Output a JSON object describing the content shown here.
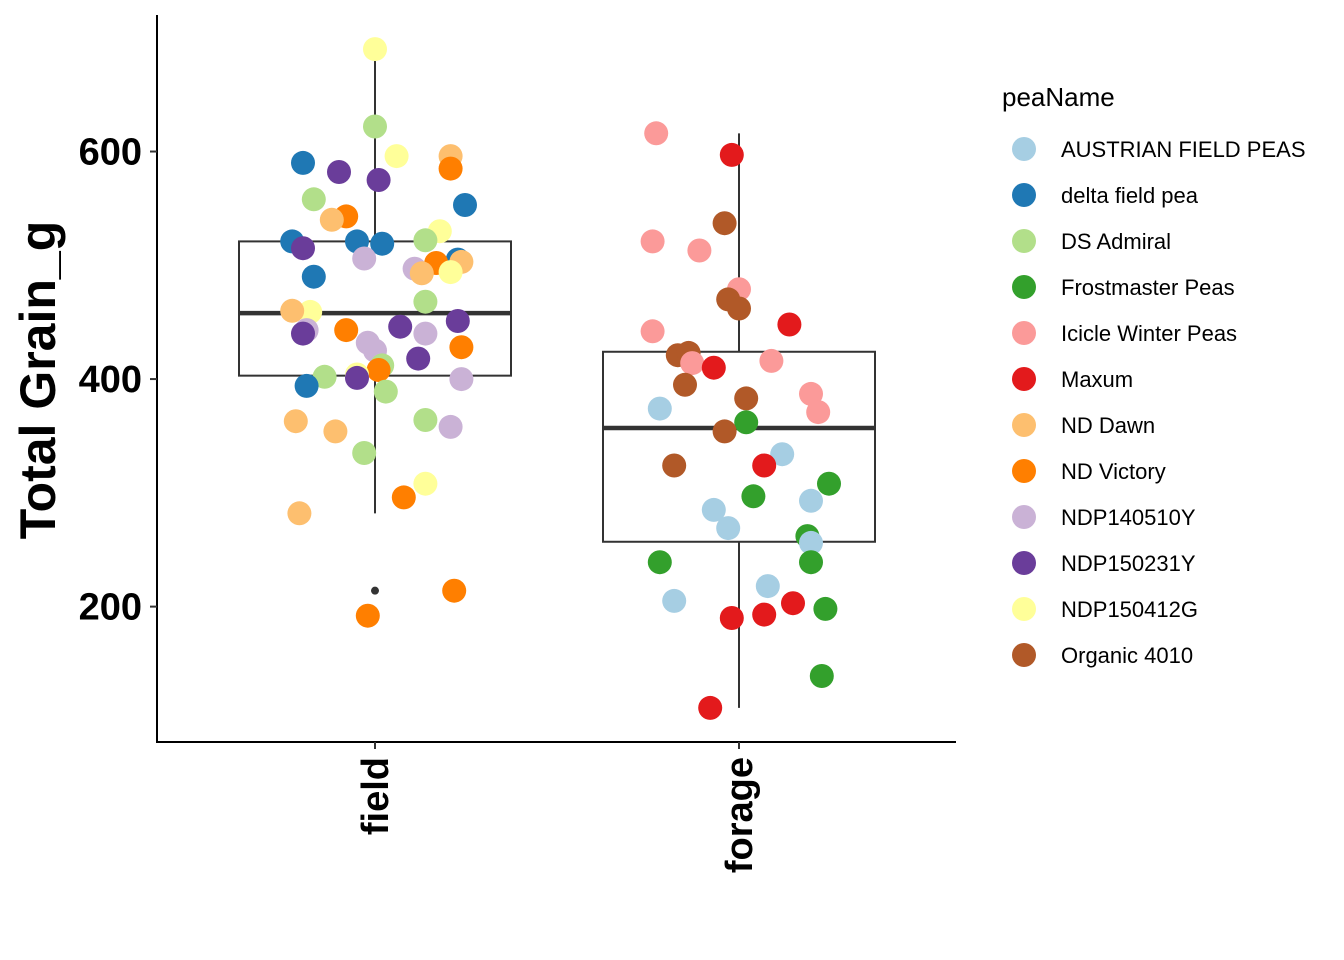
{
  "chart_data": {
    "type": "boxplot_with_jitter",
    "ylabel": "Total Grain_g",
    "xlabel": "",
    "categories": [
      "field",
      "forage"
    ],
    "ylim": [
      81,
      720
    ],
    "yticks": [
      200,
      400,
      600
    ],
    "legend": {
      "title": "peaName",
      "placement": "right",
      "entries": [
        {
          "name": "AUSTRIAN FIELD PEAS",
          "color": "#A6CEE3"
        },
        {
          "name": "delta field pea",
          "color": "#1F78B4"
        },
        {
          "name": "DS Admiral",
          "color": "#B2DF8A"
        },
        {
          "name": "Frostmaster Peas",
          "color": "#33A02C"
        },
        {
          "name": "Icicle Winter Peas",
          "color": "#FB9A99"
        },
        {
          "name": "Maxum",
          "color": "#E31A1C"
        },
        {
          "name": "ND Dawn",
          "color": "#FDBF6F"
        },
        {
          "name": "ND Victory",
          "color": "#FF7F00"
        },
        {
          "name": "NDP140510Y",
          "color": "#CAB2D6"
        },
        {
          "name": "NDP150231Y",
          "color": "#6A3D9A"
        },
        {
          "name": "NDP150412G",
          "color": "#FFFF99"
        },
        {
          "name": "Organic 4010",
          "color": "#B15928"
        }
      ]
    },
    "boxes": [
      {
        "category": "field",
        "lower_whisker": 282,
        "q1": 403,
        "median": 458,
        "q3": 521,
        "upper_whisker": 690,
        "outliers": [
          214,
          192
        ]
      },
      {
        "category": "forage",
        "lower_whisker": 111,
        "q1": 257,
        "median": 357,
        "q3": 424,
        "upper_whisker": 616,
        "outliers": []
      }
    ],
    "points": [
      {
        "category": "field",
        "jitter": -0.2,
        "y": 590,
        "group": "delta field pea"
      },
      {
        "category": "field",
        "jitter": -0.1,
        "y": 582,
        "group": "NDP150231Y"
      },
      {
        "category": "field",
        "jitter": 0.0,
        "y": 690,
        "group": "NDP150412G"
      },
      {
        "category": "field",
        "jitter": 0.0,
        "y": 622,
        "group": "DS Admiral"
      },
      {
        "category": "field",
        "jitter": 0.06,
        "y": 596,
        "group": "NDP150412G"
      },
      {
        "category": "field",
        "jitter": 0.21,
        "y": 596,
        "group": "ND Dawn"
      },
      {
        "category": "field",
        "jitter": 0.21,
        "y": 585,
        "group": "ND Victory"
      },
      {
        "category": "field",
        "jitter": 0.01,
        "y": 575,
        "group": "NDP150231Y"
      },
      {
        "category": "field",
        "jitter": -0.17,
        "y": 558,
        "group": "DS Admiral"
      },
      {
        "category": "field",
        "jitter": 0.25,
        "y": 553,
        "group": "delta field pea"
      },
      {
        "category": "field",
        "jitter": -0.08,
        "y": 543,
        "group": "ND Victory"
      },
      {
        "category": "field",
        "jitter": -0.12,
        "y": 540,
        "group": "ND Dawn"
      },
      {
        "category": "field",
        "jitter": 0.18,
        "y": 530,
        "group": "NDP150412G"
      },
      {
        "category": "field",
        "jitter": 0.14,
        "y": 522,
        "group": "DS Admiral"
      },
      {
        "category": "field",
        "jitter": -0.23,
        "y": 521,
        "group": "delta field pea"
      },
      {
        "category": "field",
        "jitter": -0.05,
        "y": 521,
        "group": "delta field pea"
      },
      {
        "category": "field",
        "jitter": 0.02,
        "y": 519,
        "group": "delta field pea"
      },
      {
        "category": "field",
        "jitter": -0.2,
        "y": 515,
        "group": "NDP150231Y"
      },
      {
        "category": "field",
        "jitter": -0.03,
        "y": 506,
        "group": "NDP140510Y"
      },
      {
        "category": "field",
        "jitter": 0.23,
        "y": 505,
        "group": "delta field pea"
      },
      {
        "category": "field",
        "jitter": 0.24,
        "y": 503,
        "group": "ND Dawn"
      },
      {
        "category": "field",
        "jitter": 0.17,
        "y": 502,
        "group": "ND Victory"
      },
      {
        "category": "field",
        "jitter": 0.11,
        "y": 497,
        "group": "NDP140510Y"
      },
      {
        "category": "field",
        "jitter": 0.21,
        "y": 494,
        "group": "NDP150412G"
      },
      {
        "category": "field",
        "jitter": 0.13,
        "y": 493,
        "group": "ND Dawn"
      },
      {
        "category": "field",
        "jitter": -0.17,
        "y": 490,
        "group": "delta field pea"
      },
      {
        "category": "field",
        "jitter": 0.14,
        "y": 468,
        "group": "DS Admiral"
      },
      {
        "category": "field",
        "jitter": -0.18,
        "y": 459,
        "group": "NDP150412G"
      },
      {
        "category": "field",
        "jitter": -0.23,
        "y": 460,
        "group": "ND Dawn"
      },
      {
        "category": "field",
        "jitter": 0.23,
        "y": 451,
        "group": "NDP150231Y"
      },
      {
        "category": "field",
        "jitter": -0.08,
        "y": 443,
        "group": "ND Victory"
      },
      {
        "category": "field",
        "jitter": -0.19,
        "y": 443,
        "group": "NDP140510Y"
      },
      {
        "category": "field",
        "jitter": 0.07,
        "y": 446,
        "group": "NDP150231Y"
      },
      {
        "category": "field",
        "jitter": 0.14,
        "y": 440,
        "group": "NDP140510Y"
      },
      {
        "category": "field",
        "jitter": -0.2,
        "y": 440,
        "group": "NDP150231Y"
      },
      {
        "category": "field",
        "jitter": -0.02,
        "y": 432,
        "group": "NDP140510Y"
      },
      {
        "category": "field",
        "jitter": 0.24,
        "y": 428,
        "group": "ND Victory"
      },
      {
        "category": "field",
        "jitter": 0.0,
        "y": 425,
        "group": "NDP140510Y"
      },
      {
        "category": "field",
        "jitter": 0.12,
        "y": 418,
        "group": "NDP150231Y"
      },
      {
        "category": "field",
        "jitter": 0.02,
        "y": 412,
        "group": "DS Admiral"
      },
      {
        "category": "field",
        "jitter": 0.01,
        "y": 408,
        "group": "ND Victory"
      },
      {
        "category": "field",
        "jitter": -0.14,
        "y": 402,
        "group": "DS Admiral"
      },
      {
        "category": "field",
        "jitter": -0.05,
        "y": 404,
        "group": "NDP150412G"
      },
      {
        "category": "field",
        "jitter": -0.05,
        "y": 401,
        "group": "NDP150231Y"
      },
      {
        "category": "field",
        "jitter": 0.24,
        "y": 400,
        "group": "NDP140510Y"
      },
      {
        "category": "field",
        "jitter": -0.19,
        "y": 394,
        "group": "delta field pea"
      },
      {
        "category": "field",
        "jitter": 0.03,
        "y": 389,
        "group": "DS Admiral"
      },
      {
        "category": "field",
        "jitter": 0.14,
        "y": 364,
        "group": "DS Admiral"
      },
      {
        "category": "field",
        "jitter": -0.22,
        "y": 363,
        "group": "ND Dawn"
      },
      {
        "category": "field",
        "jitter": 0.21,
        "y": 358,
        "group": "NDP140510Y"
      },
      {
        "category": "field",
        "jitter": -0.11,
        "y": 354,
        "group": "ND Dawn"
      },
      {
        "category": "field",
        "jitter": -0.03,
        "y": 335,
        "group": "DS Admiral"
      },
      {
        "category": "field",
        "jitter": 0.14,
        "y": 308,
        "group": "NDP150412G"
      },
      {
        "category": "field",
        "jitter": 0.08,
        "y": 296,
        "group": "ND Victory"
      },
      {
        "category": "field",
        "jitter": -0.21,
        "y": 282,
        "group": "ND Dawn"
      },
      {
        "category": "field",
        "jitter": 0.22,
        "y": 214,
        "group": "ND Victory"
      },
      {
        "category": "field",
        "jitter": -0.02,
        "y": 192,
        "group": "ND Victory"
      },
      {
        "category": "forage",
        "jitter": -0.23,
        "y": 616,
        "group": "Icicle Winter Peas"
      },
      {
        "category": "forage",
        "jitter": -0.02,
        "y": 597,
        "group": "Maxum"
      },
      {
        "category": "forage",
        "jitter": -0.04,
        "y": 537,
        "group": "Organic 4010"
      },
      {
        "category": "forage",
        "jitter": -0.24,
        "y": 521,
        "group": "Icicle Winter Peas"
      },
      {
        "category": "forage",
        "jitter": -0.11,
        "y": 513,
        "group": "Icicle Winter Peas"
      },
      {
        "category": "forage",
        "jitter": 0.0,
        "y": 479,
        "group": "Icicle Winter Peas"
      },
      {
        "category": "forage",
        "jitter": -0.03,
        "y": 470,
        "group": "Organic 4010"
      },
      {
        "category": "forage",
        "jitter": 0.0,
        "y": 462,
        "group": "Organic 4010"
      },
      {
        "category": "forage",
        "jitter": 0.14,
        "y": 448,
        "group": "Maxum"
      },
      {
        "category": "forage",
        "jitter": -0.24,
        "y": 442,
        "group": "Icicle Winter Peas"
      },
      {
        "category": "forage",
        "jitter": -0.17,
        "y": 421,
        "group": "Organic 4010"
      },
      {
        "category": "forage",
        "jitter": -0.14,
        "y": 423,
        "group": "Organic 4010"
      },
      {
        "category": "forage",
        "jitter": 0.09,
        "y": 416,
        "group": "Icicle Winter Peas"
      },
      {
        "category": "forage",
        "jitter": -0.13,
        "y": 414,
        "group": "Icicle Winter Peas"
      },
      {
        "category": "forage",
        "jitter": -0.07,
        "y": 410,
        "group": "Maxum"
      },
      {
        "category": "forage",
        "jitter": -0.15,
        "y": 395,
        "group": "Organic 4010"
      },
      {
        "category": "forage",
        "jitter": 0.2,
        "y": 387,
        "group": "Icicle Winter Peas"
      },
      {
        "category": "forage",
        "jitter": 0.02,
        "y": 383,
        "group": "Organic 4010"
      },
      {
        "category": "forage",
        "jitter": -0.22,
        "y": 374,
        "group": "AUSTRIAN FIELD PEAS"
      },
      {
        "category": "forage",
        "jitter": 0.22,
        "y": 371,
        "group": "Icicle Winter Peas"
      },
      {
        "category": "forage",
        "jitter": 0.02,
        "y": 362,
        "group": "Frostmaster Peas"
      },
      {
        "category": "forage",
        "jitter": -0.04,
        "y": 354,
        "group": "Organic 4010"
      },
      {
        "category": "forage",
        "jitter": 0.12,
        "y": 334,
        "group": "AUSTRIAN FIELD PEAS"
      },
      {
        "category": "forage",
        "jitter": -0.18,
        "y": 324,
        "group": "Organic 4010"
      },
      {
        "category": "forage",
        "jitter": 0.07,
        "y": 324,
        "group": "Maxum"
      },
      {
        "category": "forage",
        "jitter": 0.25,
        "y": 308,
        "group": "Frostmaster Peas"
      },
      {
        "category": "forage",
        "jitter": 0.04,
        "y": 297,
        "group": "Frostmaster Peas"
      },
      {
        "category": "forage",
        "jitter": 0.2,
        "y": 293,
        "group": "AUSTRIAN FIELD PEAS"
      },
      {
        "category": "forage",
        "jitter": -0.07,
        "y": 285,
        "group": "AUSTRIAN FIELD PEAS"
      },
      {
        "category": "forage",
        "jitter": -0.03,
        "y": 269,
        "group": "AUSTRIAN FIELD PEAS"
      },
      {
        "category": "forage",
        "jitter": 0.19,
        "y": 262,
        "group": "Frostmaster Peas"
      },
      {
        "category": "forage",
        "jitter": 0.2,
        "y": 256,
        "group": "AUSTRIAN FIELD PEAS"
      },
      {
        "category": "forage",
        "jitter": -0.22,
        "y": 239,
        "group": "Frostmaster Peas"
      },
      {
        "category": "forage",
        "jitter": 0.2,
        "y": 239,
        "group": "Frostmaster Peas"
      },
      {
        "category": "forage",
        "jitter": 0.08,
        "y": 218,
        "group": "AUSTRIAN FIELD PEAS"
      },
      {
        "category": "forage",
        "jitter": -0.18,
        "y": 205,
        "group": "AUSTRIAN FIELD PEAS"
      },
      {
        "category": "forage",
        "jitter": 0.15,
        "y": 203,
        "group": "Maxum"
      },
      {
        "category": "forage",
        "jitter": 0.24,
        "y": 198,
        "group": "Frostmaster Peas"
      },
      {
        "category": "forage",
        "jitter": 0.07,
        "y": 193,
        "group": "Maxum"
      },
      {
        "category": "forage",
        "jitter": -0.02,
        "y": 190,
        "group": "Maxum"
      },
      {
        "category": "forage",
        "jitter": 0.23,
        "y": 139,
        "group": "Frostmaster Peas"
      },
      {
        "category": "forage",
        "jitter": -0.08,
        "y": 111,
        "group": "Maxum"
      }
    ]
  }
}
